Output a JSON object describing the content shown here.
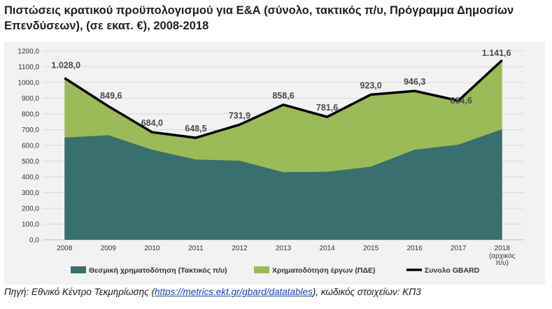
{
  "title": "Πιστώσεις κρατικού προϋπολογισμού για Ε&Α (σύνολο, τακτικός π/υ, Πρόγραμμα Δημοσίων Επενδύσεων), (σε εκατ. €), 2008-2018",
  "source": {
    "prefix": "Πηγή: Εθνικό Κέντρο Τεκμηρίωσης (",
    "link": "https://metrics.ekt.gr/gbard/datatables",
    "suffix": "), κωδικός στοιχείων: ΚΠ3"
  },
  "chart_data": {
    "type": "area",
    "categories": [
      "2008",
      "2009",
      "2010",
      "2011",
      "2012",
      "2013",
      "2014",
      "2015",
      "2016",
      "2017",
      "2018"
    ],
    "category_sublabel": {
      "2018": "(αρχικός π/υ)"
    },
    "ylim": [
      0,
      1200
    ],
    "ytick_step": 100,
    "ytick_labels": [
      "0,0",
      "100,0",
      "200,0",
      "300,0",
      "400,0",
      "500,0",
      "600,0",
      "700,0",
      "800,0",
      "900,0",
      "1000,0",
      "1100,0",
      "1200,0"
    ],
    "grid": true,
    "stacked": true,
    "series": [
      {
        "name": "Θεσμική χρηματοδότηση (Τακτικός π/υ)",
        "kind": "area",
        "color": "#3a6f6f",
        "values": [
          650,
          665,
          573,
          510,
          503,
          430,
          432,
          465,
          573,
          605,
          703
        ]
      },
      {
        "name": "Χρηματοδότηση έργων (ΠΔΕ)",
        "kind": "area",
        "color": "#9bbb59",
        "values": [
          378.0,
          184.6,
          111.0,
          138.5,
          228.9,
          428.6,
          349.6,
          458.0,
          373.3,
          279.6,
          438.6
        ]
      },
      {
        "name": "Συνολο GBARD",
        "kind": "line",
        "color": "#000000",
        "values": [
          1028.0,
          849.6,
          684.0,
          648.5,
          731.9,
          858.6,
          781.6,
          923.0,
          946.3,
          884.6,
          1141.6
        ],
        "labels": [
          "1.028,0",
          "849,6",
          "684,0",
          "648,5",
          "731,9",
          "858,6",
          "781,6",
          "923,0",
          "946,3",
          "884,6",
          "1.141,6"
        ]
      }
    ],
    "legend_position": "bottom"
  }
}
